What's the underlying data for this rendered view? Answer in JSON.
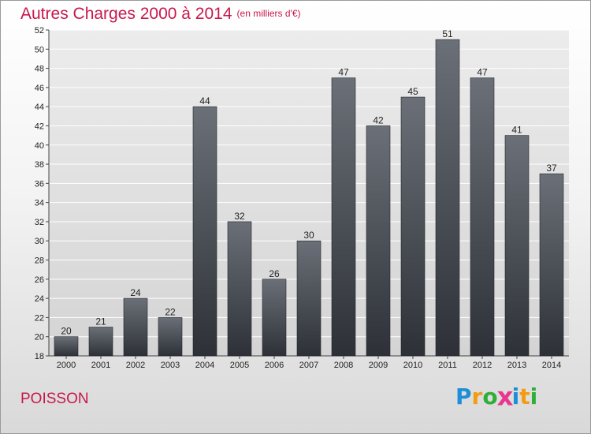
{
  "header": {
    "title": "Autres Charges 2000 à 2014",
    "unit": "(en milliers d'€)"
  },
  "footer": {
    "commune": "POISSON",
    "logo": {
      "letters": [
        "P",
        "r",
        "o",
        "x",
        "i",
        "t",
        "i"
      ],
      "colors": [
        "#1e8fd6",
        "#f39c12",
        "#2fae3a",
        "#e8368f",
        "#1e8fd6",
        "#f39c12",
        "#2fae3a"
      ]
    }
  },
  "colors": {
    "title": "#c8184a",
    "bar_top": "#6b7078",
    "bar_bottom": "#2d3137",
    "grid": "#ffffff"
  },
  "chart_data": {
    "type": "bar",
    "title": "Autres Charges 2000 à 2014",
    "subtitle": "(en milliers d'€)",
    "categories": [
      "2000",
      "2001",
      "2002",
      "2003",
      "2004",
      "2005",
      "2006",
      "2007",
      "2008",
      "2009",
      "2010",
      "2011",
      "2012",
      "2013",
      "2014"
    ],
    "values": [
      20,
      21,
      24,
      22,
      44,
      32,
      26,
      30,
      47,
      42,
      45,
      51,
      47,
      41,
      37
    ],
    "ylim": [
      18,
      52
    ],
    "yticks": [
      18,
      20,
      22,
      24,
      26,
      28,
      30,
      32,
      34,
      36,
      38,
      40,
      42,
      44,
      46,
      48,
      50,
      52
    ],
    "grid": true,
    "data_labels": true
  }
}
